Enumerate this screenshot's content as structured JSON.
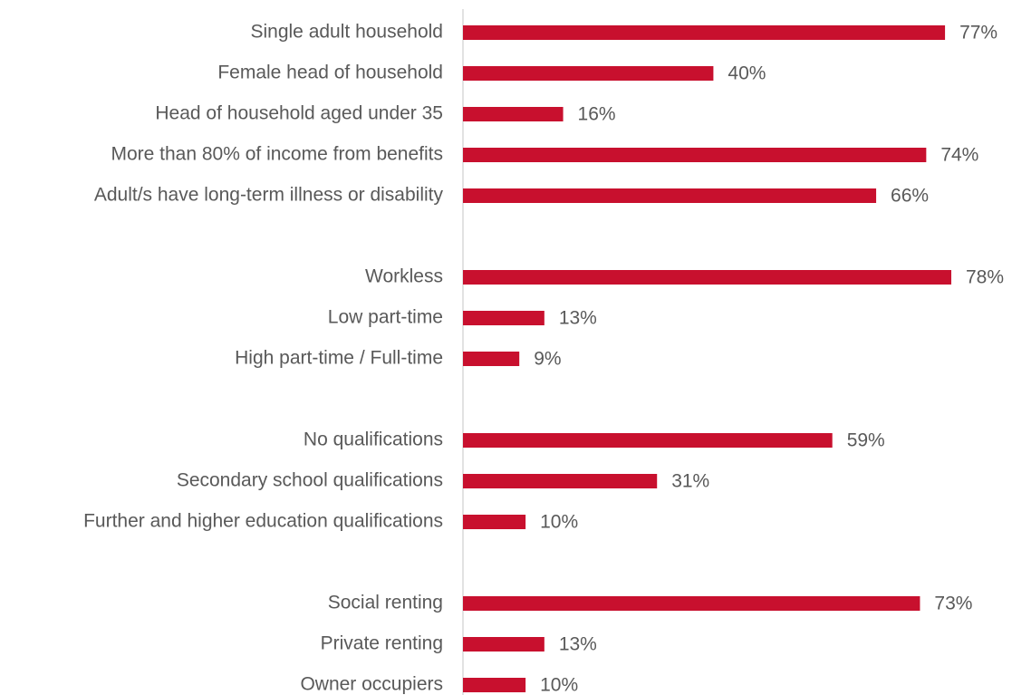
{
  "chart_data": {
    "type": "bar",
    "orientation": "horizontal",
    "color": "#c8102e",
    "categories": [
      "Single adult household",
      "Female head of household",
      "Head of household aged under 35",
      "More than 80% of income from benefits",
      "Adult/s have long-term illness or disability",
      null,
      "Workless",
      "Low part-time",
      "High part-time / Full-time",
      null,
      "No qualifications",
      "Secondary school qualifications",
      "Further and higher education qualifications",
      null,
      "Social renting",
      "Private renting",
      "Owner occupiers"
    ],
    "values": [
      77,
      40,
      16,
      74,
      66,
      null,
      78,
      13,
      9,
      null,
      59,
      31,
      10,
      null,
      73,
      13,
      10
    ],
    "value_labels": [
      "77%",
      "40%",
      "16%",
      "74%",
      "66%",
      null,
      "78%",
      "13%",
      "9%",
      null,
      "59%",
      "31%",
      "10%",
      null,
      "73%",
      "13%",
      "10%"
    ]
  }
}
